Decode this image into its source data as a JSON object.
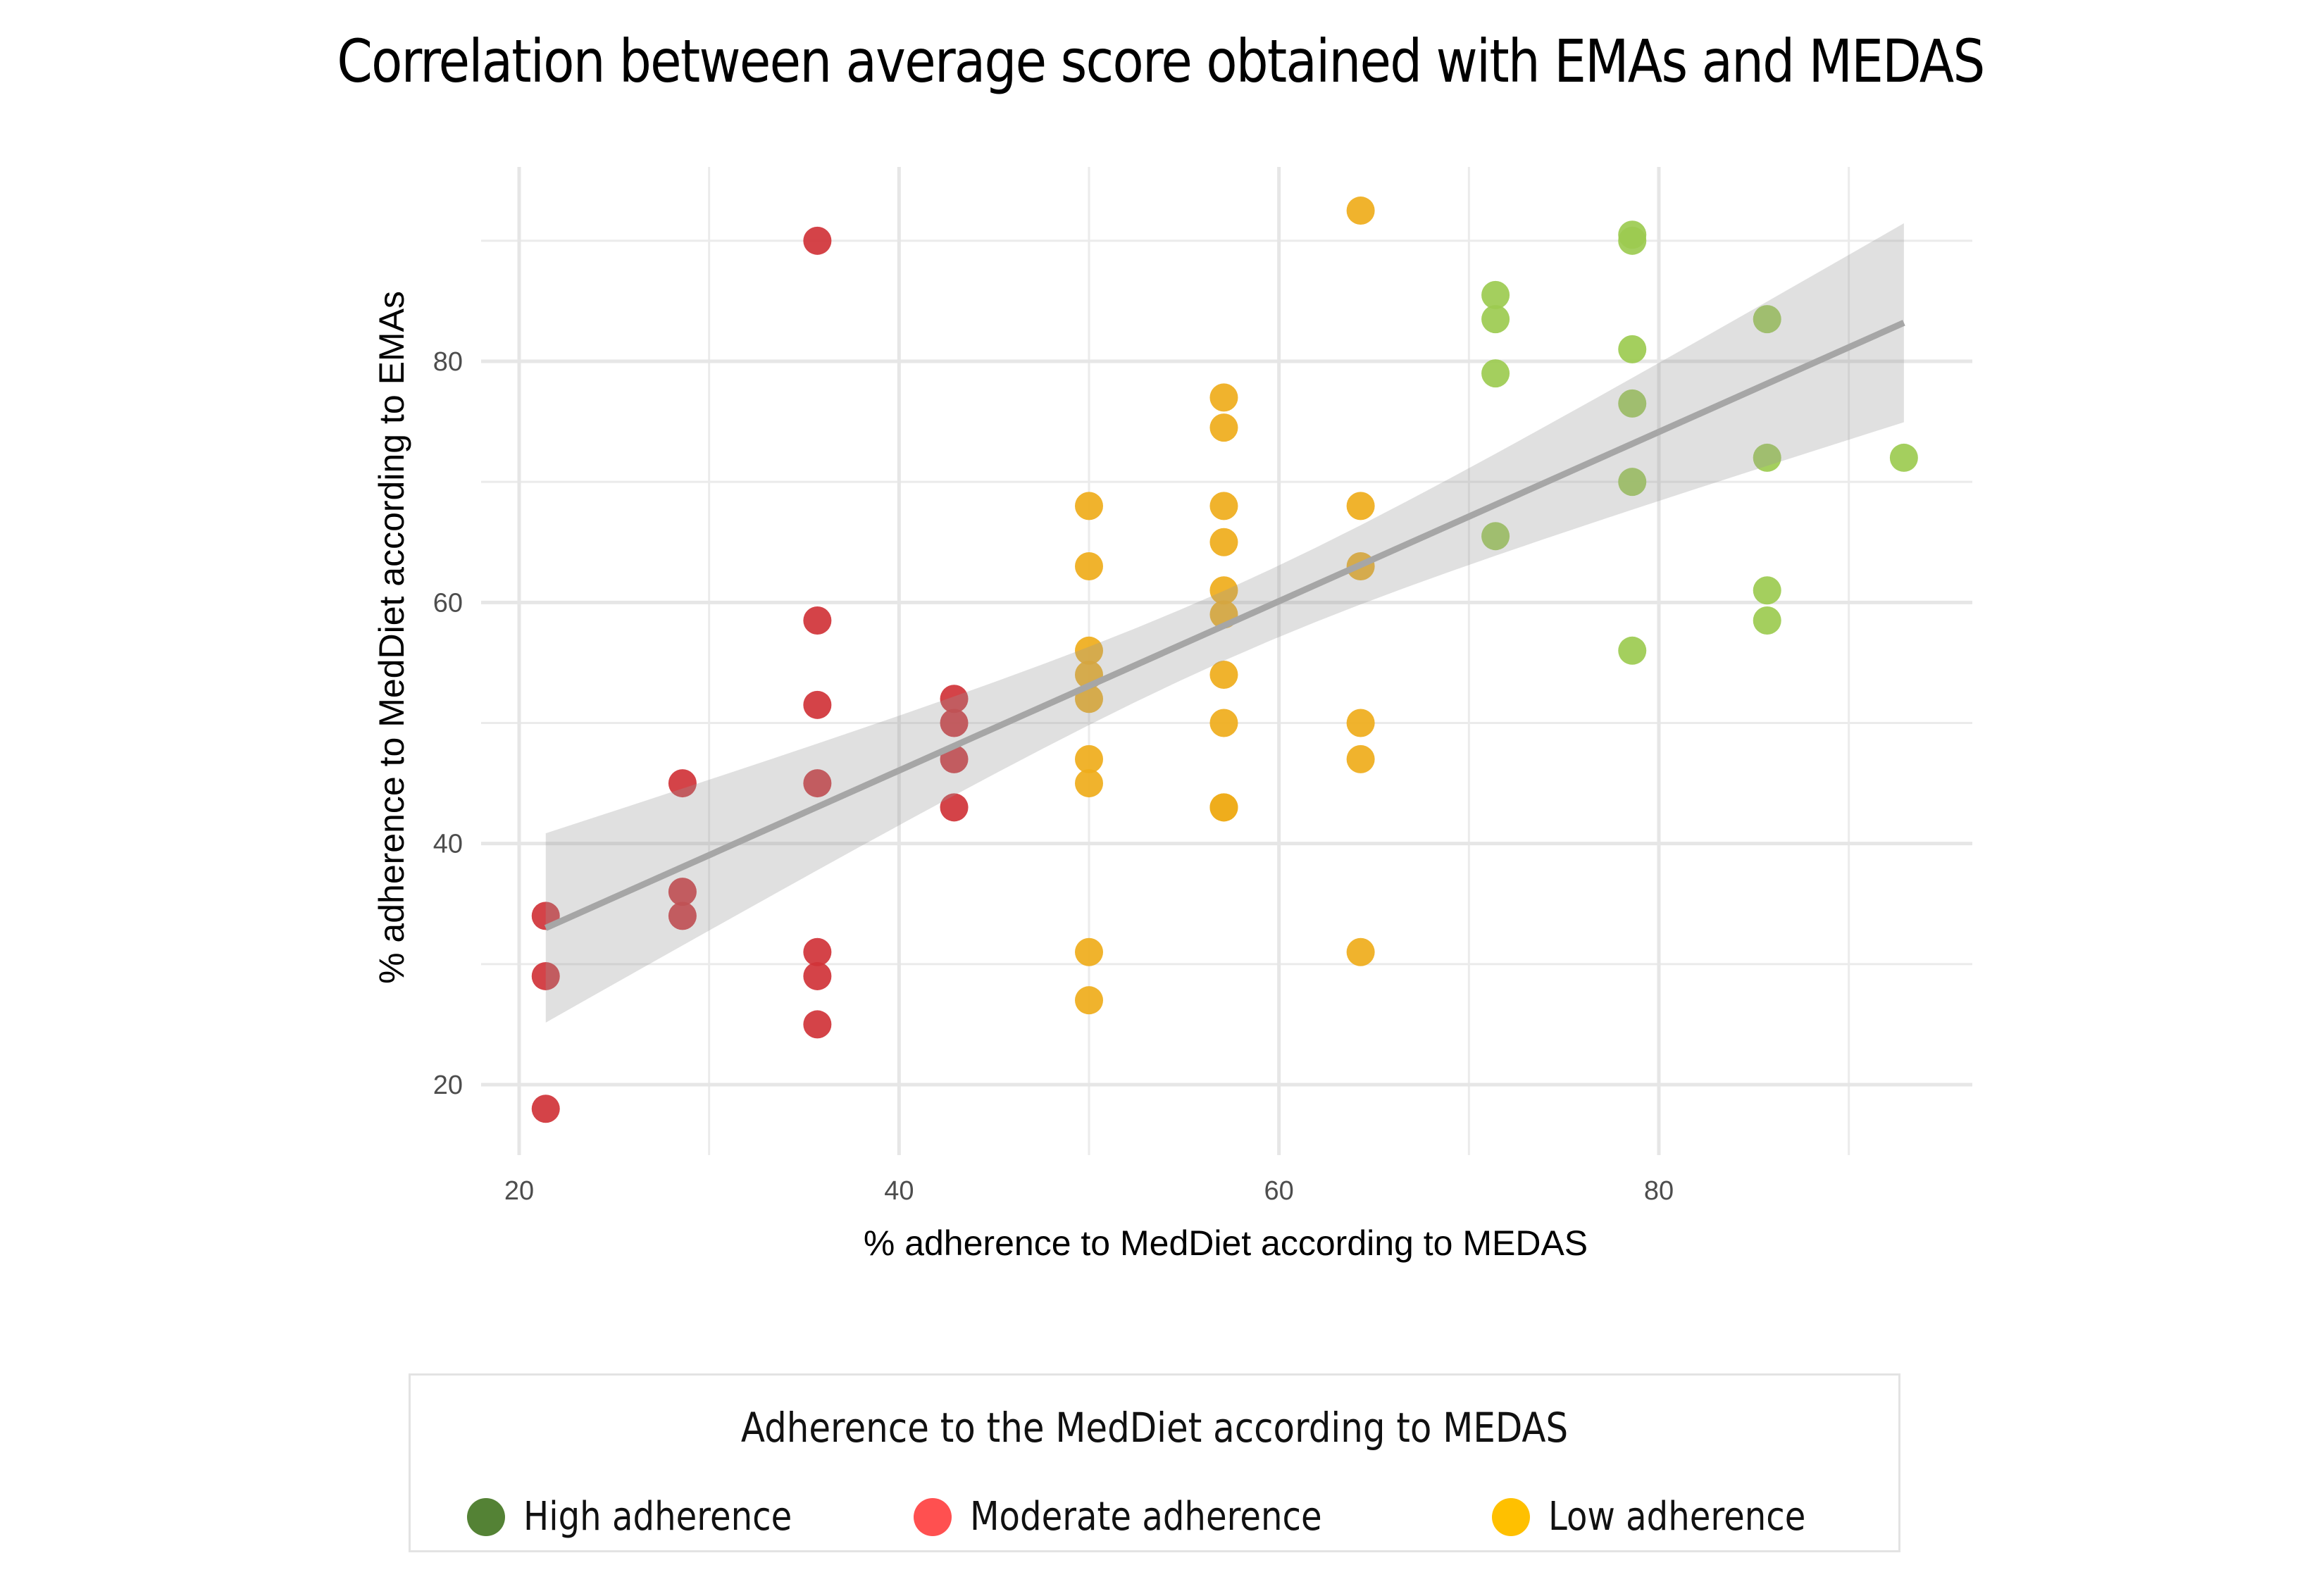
{
  "title": "Correlation between average score obtained with EMAs and MEDAS",
  "chart_data": {
    "type": "scatter",
    "title": "Correlation between average score obtained with EMAs and MEDAS",
    "xlabel": "% adherence to MedDiet according to MEDAS",
    "ylabel": "% adherence to MedDiet according to EMAs",
    "xlim": [
      17.5,
      95
    ],
    "ylim": [
      14,
      95
    ],
    "xticks": [
      20,
      40,
      60,
      80
    ],
    "yticks": [
      20,
      40,
      60,
      80
    ],
    "grid": true,
    "legend_position": "bottom",
    "legend_title": "Adherence to the MedDiet according to MEDAS",
    "series": [
      {
        "name": "High adherence",
        "legend_color": "#548235",
        "point_color": "#9ccb50",
        "points": [
          [
            71.4,
            85.5
          ],
          [
            71.4,
            83.5
          ],
          [
            71.4,
            79
          ],
          [
            71.4,
            65.5
          ],
          [
            78.6,
            90.5
          ],
          [
            78.6,
            90
          ],
          [
            78.6,
            81
          ],
          [
            78.6,
            76.5
          ],
          [
            78.6,
            70
          ],
          [
            78.6,
            56
          ],
          [
            85.7,
            83.5
          ],
          [
            85.7,
            72
          ],
          [
            85.7,
            61
          ],
          [
            85.7,
            58.5
          ],
          [
            92.9,
            72
          ]
        ]
      },
      {
        "name": "Moderate adherence",
        "legend_color": "#ff5050",
        "point_color": "#d03338",
        "points": [
          [
            21.4,
            34
          ],
          [
            21.4,
            29
          ],
          [
            21.4,
            18
          ],
          [
            28.6,
            45
          ],
          [
            28.6,
            36
          ],
          [
            28.6,
            34
          ],
          [
            35.7,
            90
          ],
          [
            35.7,
            58.5
          ],
          [
            35.7,
            51.5
          ],
          [
            35.7,
            45
          ],
          [
            35.7,
            31
          ],
          [
            35.7,
            29
          ],
          [
            35.7,
            25
          ],
          [
            42.9,
            52
          ],
          [
            42.9,
            50
          ],
          [
            42.9,
            47
          ],
          [
            42.9,
            43
          ]
        ]
      },
      {
        "name": "Low adherence",
        "legend_color": "#ffc000",
        "point_color": "#efad1b",
        "points": [
          [
            50,
            68
          ],
          [
            50,
            63
          ],
          [
            50,
            56
          ],
          [
            50,
            54
          ],
          [
            50,
            52
          ],
          [
            50,
            47
          ],
          [
            50,
            45
          ],
          [
            50,
            31
          ],
          [
            50,
            27
          ],
          [
            57.1,
            77
          ],
          [
            57.1,
            74.5
          ],
          [
            57.1,
            68
          ],
          [
            57.1,
            65
          ],
          [
            57.1,
            61
          ],
          [
            57.1,
            59
          ],
          [
            57.1,
            54
          ],
          [
            57.1,
            50
          ],
          [
            57.1,
            43
          ],
          [
            57.1,
            43
          ],
          [
            64.3,
            92.5
          ],
          [
            64.3,
            68
          ],
          [
            64.3,
            63
          ],
          [
            64.3,
            50
          ],
          [
            64.3,
            47
          ],
          [
            64.3,
            31
          ]
        ]
      }
    ],
    "regression": {
      "type": "linear",
      "x": [
        21.4,
        92.9
      ],
      "y": [
        33,
        83.2
      ],
      "ci_lower": [
        25.3,
        75
      ],
      "ci_upper": [
        41,
        91.5
      ],
      "color": "#a6a6a6"
    }
  }
}
